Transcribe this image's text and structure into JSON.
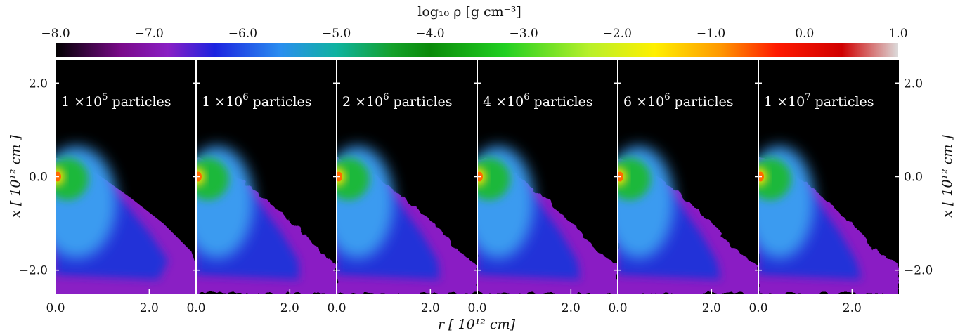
{
  "chart_data": {
    "type": "heatmap",
    "colorbar": {
      "label": "log₁₀ ρ [g cm⁻³]",
      "ticks": [
        "−8.0",
        "−7.0",
        "−6.0",
        "−5.0",
        "−4.0",
        "−3.0",
        "−2.0",
        "−1.0",
        "0.0",
        "1.0"
      ],
      "range": [
        -8.0,
        1.0
      ],
      "stops": [
        {
          "v": -8.0,
          "color": "#000000"
        },
        {
          "v": -7.3,
          "color": "#7a0a8a"
        },
        {
          "v": -6.8,
          "color": "#8a1fc4"
        },
        {
          "v": -6.3,
          "color": "#1c23e0"
        },
        {
          "v": -5.6,
          "color": "#2a8ef0"
        },
        {
          "v": -5.0,
          "color": "#0fb3a0"
        },
        {
          "v": -4.4,
          "color": "#14a02a"
        },
        {
          "v": -4.0,
          "color": "#0a8a0a"
        },
        {
          "v": -3.2,
          "color": "#22d022"
        },
        {
          "v": -2.3,
          "color": "#b8f02a"
        },
        {
          "v": -1.6,
          "color": "#fff000"
        },
        {
          "v": -0.9,
          "color": "#ff9800"
        },
        {
          "v": -0.3,
          "color": "#ff1a00"
        },
        {
          "v": 0.4,
          "color": "#d00000"
        },
        {
          "v": 1.0,
          "color": "#dcdcdc"
        }
      ]
    },
    "panels": [
      {
        "label": "1 ×10",
        "exp": "5",
        "suffix": "particles"
      },
      {
        "label": "1 ×10",
        "exp": "6",
        "suffix": "particles"
      },
      {
        "label": "2 ×10",
        "exp": "6",
        "suffix": "particles"
      },
      {
        "label": "4 ×10",
        "exp": "6",
        "suffix": "particles"
      },
      {
        "label": "6 ×10",
        "exp": "6",
        "suffix": "particles"
      },
      {
        "label": "1 ×10",
        "exp": "7",
        "suffix": "particles"
      }
    ],
    "xlabel": "r  [ 10¹² cm]",
    "ylabel": "x  [ 10¹² cm ]",
    "xlim": [
      0.0,
      3.0
    ],
    "ylim": [
      -2.5,
      2.5
    ],
    "xticks": [
      "0.0",
      "2.0"
    ],
    "xtick_values": [
      0.0,
      2.0
    ],
    "yticks": [
      "2.0",
      "0.0",
      "−2.0"
    ],
    "ytick_values": [
      2.0,
      0.0,
      -2.0
    ],
    "grid": false,
    "legend": "none"
  }
}
